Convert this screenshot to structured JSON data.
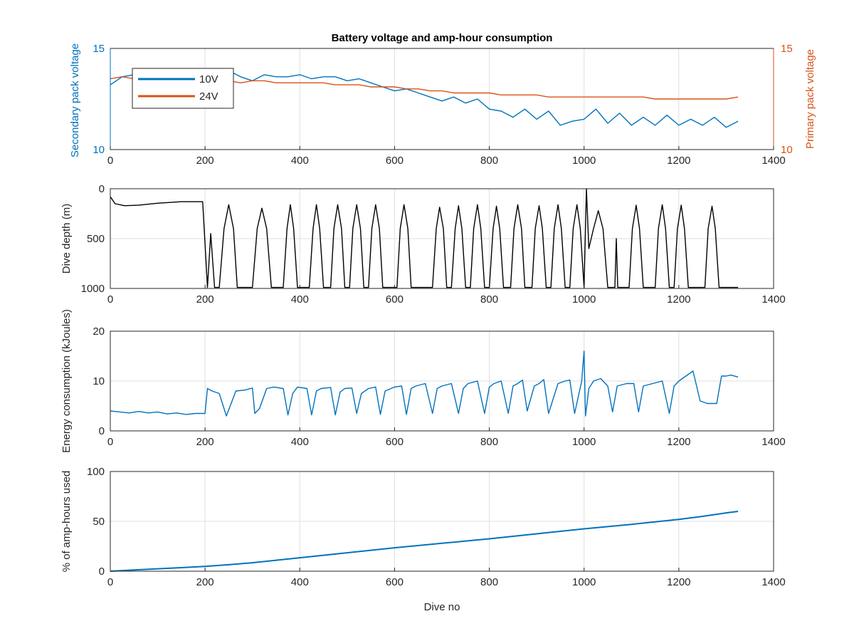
{
  "chart_data": [
    {
      "type": "line",
      "panel": "voltage",
      "title": "Battery voltage and amp-hour consumption",
      "xlabel": "",
      "ylabel_left": "Secondary pack voltage",
      "ylabel_right": "Primary pack voltage",
      "xlim": [
        0,
        1400
      ],
      "ylim_left": [
        10,
        15
      ],
      "ylim_right": [
        10,
        15
      ],
      "xticks": [
        "0",
        "200",
        "400",
        "600",
        "800",
        "1000",
        "1200",
        "1400"
      ],
      "yticks_left": [
        "10",
        "15"
      ],
      "yticks_right": [
        "10",
        "15"
      ],
      "grid": true,
      "legend": {
        "placement": "top-left",
        "entries": [
          "10V",
          "24V"
        ]
      },
      "series": [
        {
          "name": "10V",
          "axis": "left",
          "color": "#0072BD",
          "x": [
            0,
            25,
            50,
            75,
            100,
            125,
            150,
            175,
            200,
            225,
            250,
            275,
            300,
            325,
            350,
            375,
            400,
            425,
            450,
            475,
            500,
            525,
            550,
            575,
            600,
            625,
            650,
            675,
            700,
            725,
            750,
            775,
            800,
            825,
            850,
            875,
            900,
            925,
            950,
            975,
            1000,
            1025,
            1050,
            1075,
            1100,
            1125,
            1150,
            1175,
            1200,
            1225,
            1250,
            1275,
            1300,
            1325
          ],
          "y": [
            13.2,
            13.6,
            13.7,
            13.6,
            13.6,
            13.6,
            13.7,
            13.6,
            13.6,
            13.7,
            13.9,
            13.6,
            13.4,
            13.7,
            13.6,
            13.6,
            13.7,
            13.5,
            13.6,
            13.6,
            13.4,
            13.5,
            13.3,
            13.1,
            12.9,
            13.0,
            12.8,
            12.6,
            12.4,
            12.6,
            12.3,
            12.5,
            12.0,
            11.9,
            11.6,
            12.0,
            11.5,
            11.9,
            11.2,
            11.4,
            11.5,
            12.0,
            11.3,
            11.8,
            11.2,
            11.6,
            11.2,
            11.7,
            11.2,
            11.5,
            11.2,
            11.6,
            11.1,
            11.4
          ]
        },
        {
          "name": "24V",
          "axis": "right",
          "color": "#D95319",
          "x": [
            0,
            25,
            50,
            75,
            100,
            125,
            150,
            175,
            200,
            225,
            250,
            275,
            300,
            325,
            350,
            375,
            400,
            425,
            450,
            475,
            500,
            525,
            550,
            575,
            600,
            625,
            650,
            675,
            700,
            725,
            750,
            775,
            800,
            825,
            850,
            875,
            900,
            925,
            950,
            975,
            1000,
            1025,
            1050,
            1075,
            1100,
            1125,
            1150,
            1175,
            1200,
            1225,
            1250,
            1275,
            1300,
            1325
          ],
          "y": [
            13.5,
            13.6,
            13.5,
            13.5,
            13.5,
            13.5,
            13.5,
            13.5,
            13.5,
            13.4,
            13.4,
            13.3,
            13.4,
            13.4,
            13.3,
            13.3,
            13.3,
            13.3,
            13.3,
            13.2,
            13.2,
            13.2,
            13.1,
            13.1,
            13.1,
            13.0,
            13.0,
            12.9,
            12.9,
            12.8,
            12.8,
            12.8,
            12.8,
            12.7,
            12.7,
            12.7,
            12.7,
            12.6,
            12.6,
            12.6,
            12.6,
            12.6,
            12.6,
            12.6,
            12.6,
            12.6,
            12.5,
            12.5,
            12.5,
            12.5,
            12.5,
            12.5,
            12.5,
            12.6
          ]
        }
      ]
    },
    {
      "type": "line",
      "panel": "depth",
      "title": "",
      "xlabel": "",
      "ylabel": "Dive depth (m)",
      "xlim": [
        0,
        1400
      ],
      "ylim": [
        1000,
        0
      ],
      "reversed_y": true,
      "xticks": [
        "0",
        "200",
        "400",
        "600",
        "800",
        "1000",
        "1200",
        "1400"
      ],
      "yticks": [
        "0",
        "500",
        "1000"
      ],
      "grid": true,
      "series": [
        {
          "color": "#000000",
          "x": [
            0,
            10,
            30,
            60,
            100,
            150,
            195,
            205,
            212,
            220,
            230,
            240,
            250,
            260,
            268,
            300,
            310,
            320,
            330,
            340,
            365,
            373,
            380,
            387,
            395,
            420,
            428,
            435,
            442,
            450,
            455,
            465,
            472,
            480,
            488,
            495,
            500,
            505,
            512,
            520,
            528,
            535,
            540,
            545,
            552,
            560,
            568,
            575,
            605,
            612,
            620,
            628,
            635,
            680,
            688,
            695,
            703,
            710,
            715,
            720,
            728,
            735,
            742,
            750,
            755,
            760,
            767,
            775,
            782,
            790,
            795,
            800,
            808,
            815,
            822,
            830,
            840,
            845,
            852,
            860,
            868,
            875,
            885,
            890,
            897,
            905,
            912,
            920,
            925,
            930,
            937,
            945,
            952,
            960,
            965,
            970,
            977,
            985,
            992,
            1000,
            1005,
            1010,
            1020,
            1030,
            1040,
            1050,
            1060,
            1065,
            1068,
            1071,
            1075,
            1095,
            1102,
            1110,
            1117,
            1125,
            1140,
            1150,
            1157,
            1165,
            1172,
            1180,
            1185,
            1190,
            1197,
            1205,
            1212,
            1220,
            1255,
            1262,
            1270,
            1277,
            1285,
            1300,
            1310,
            1320,
            1325
          ],
          "y": [
            80,
            150,
            170,
            165,
            145,
            130,
            130,
            990,
            450,
            990,
            990,
            400,
            160,
            400,
            990,
            990,
            400,
            195,
            400,
            990,
            990,
            400,
            160,
            400,
            990,
            990,
            400,
            160,
            400,
            990,
            990,
            990,
            400,
            160,
            400,
            990,
            990,
            990,
            400,
            160,
            400,
            990,
            990,
            990,
            400,
            160,
            400,
            990,
            990,
            400,
            160,
            400,
            990,
            990,
            400,
            185,
            400,
            990,
            990,
            990,
            400,
            170,
            400,
            990,
            990,
            990,
            400,
            160,
            400,
            990,
            990,
            990,
            400,
            175,
            400,
            990,
            990,
            990,
            400,
            160,
            400,
            990,
            990,
            990,
            400,
            170,
            400,
            990,
            990,
            990,
            400,
            160,
            400,
            990,
            990,
            990,
            400,
            160,
            400,
            990,
            0,
            600,
            400,
            220,
            400,
            990,
            990,
            990,
            500,
            990,
            990,
            990,
            400,
            165,
            400,
            990,
            990,
            990,
            400,
            160,
            400,
            990,
            990,
            990,
            400,
            165,
            400,
            990,
            990,
            400,
            175,
            400,
            990,
            990,
            990,
            990,
            990
          ]
        }
      ]
    },
    {
      "type": "line",
      "panel": "energy",
      "title": "",
      "xlabel": "",
      "ylabel": "Energy consumption (kJoules)",
      "xlim": [
        0,
        1400
      ],
      "ylim": [
        0,
        20
      ],
      "xticks": [
        "0",
        "200",
        "400",
        "600",
        "800",
        "1000",
        "1200",
        "1400"
      ],
      "yticks": [
        "0",
        "10",
        "20"
      ],
      "grid": true,
      "series": [
        {
          "color": "#0072BD",
          "x": [
            0,
            20,
            40,
            60,
            80,
            100,
            120,
            140,
            160,
            180,
            200,
            205,
            215,
            230,
            245,
            255,
            265,
            285,
            300,
            305,
            315,
            330,
            345,
            365,
            375,
            385,
            395,
            415,
            425,
            435,
            445,
            465,
            475,
            485,
            495,
            510,
            520,
            530,
            545,
            560,
            570,
            580,
            600,
            615,
            625,
            635,
            645,
            665,
            680,
            690,
            700,
            720,
            735,
            745,
            755,
            775,
            790,
            800,
            810,
            825,
            840,
            850,
            860,
            870,
            880,
            895,
            905,
            915,
            925,
            945,
            960,
            970,
            980,
            995,
            1000,
            1003,
            1010,
            1020,
            1035,
            1050,
            1060,
            1070,
            1090,
            1105,
            1115,
            1125,
            1145,
            1165,
            1180,
            1190,
            1200,
            1215,
            1230,
            1245,
            1260,
            1280,
            1290,
            1300,
            1310,
            1325
          ],
          "y": [
            4.0,
            3.8,
            3.6,
            3.9,
            3.6,
            3.8,
            3.4,
            3.6,
            3.3,
            3.5,
            3.5,
            8.5,
            8.0,
            7.5,
            3.0,
            5.5,
            8.0,
            8.2,
            8.6,
            3.5,
            4.5,
            8.5,
            8.8,
            8.5,
            3.2,
            7.5,
            8.8,
            8.5,
            3.2,
            8.0,
            8.5,
            8.7,
            3.2,
            7.8,
            8.5,
            8.6,
            3.5,
            7.5,
            8.5,
            8.8,
            3.3,
            8.0,
            8.8,
            9.0,
            3.3,
            8.5,
            9.0,
            9.5,
            3.5,
            8.5,
            9.0,
            9.5,
            3.5,
            8.5,
            9.5,
            10.0,
            3.5,
            8.8,
            9.5,
            10.0,
            3.5,
            9.0,
            9.5,
            10.2,
            4.0,
            9.0,
            9.5,
            10.3,
            3.5,
            9.5,
            10.0,
            10.2,
            3.5,
            10.0,
            16.0,
            3.0,
            8.5,
            10.0,
            10.5,
            9.0,
            3.8,
            9.0,
            9.5,
            9.5,
            3.8,
            9.0,
            9.5,
            10.0,
            3.5,
            9.0,
            10.0,
            11.0,
            12.0,
            6.0,
            5.5,
            5.5,
            11.0,
            11.0,
            11.2,
            10.8
          ]
        }
      ]
    },
    {
      "type": "line",
      "panel": "amphours",
      "title": "",
      "xlabel": "Dive no",
      "ylabel": "% of amp-hours used",
      "xlim": [
        0,
        1400
      ],
      "ylim": [
        0,
        100
      ],
      "xticks": [
        "0",
        "200",
        "400",
        "600",
        "800",
        "1000",
        "1200",
        "1400"
      ],
      "yticks": [
        "0",
        "50",
        "100"
      ],
      "grid": true,
      "series": [
        {
          "color": "#0072BD",
          "x": [
            0,
            50,
            100,
            150,
            200,
            250,
            300,
            400,
            500,
            600,
            700,
            800,
            900,
            1000,
            1100,
            1200,
            1250,
            1300,
            1325
          ],
          "y": [
            0,
            1.2,
            2.4,
            3.6,
            4.8,
            6.5,
            8.5,
            13.5,
            18.5,
            23.5,
            28.0,
            32.5,
            37.5,
            42.5,
            47.0,
            52.0,
            55.0,
            58.5,
            60.0
          ]
        }
      ]
    }
  ]
}
